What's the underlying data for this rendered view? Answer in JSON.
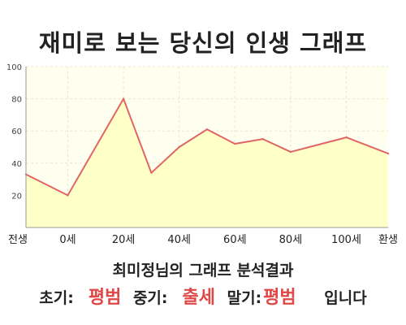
{
  "header": {
    "title": "재미로 보는 당신의 인생 그래프"
  },
  "chart_data": {
    "type": "area",
    "title": "재미로 보는 당신의 인생 그래프",
    "xlabel": "",
    "ylabel": "",
    "ylim": [
      0,
      100
    ],
    "yticks": [
      20,
      40,
      60,
      80,
      100
    ],
    "xticks": [
      {
        "label": "전생",
        "x": -15
      },
      {
        "label": "0세",
        "x": 0
      },
      {
        "label": "20세",
        "x": 20
      },
      {
        "label": "40세",
        "x": 40
      },
      {
        "label": "60세",
        "x": 60
      },
      {
        "label": "80세",
        "x": 80
      },
      {
        "label": "100세",
        "x": 100
      },
      {
        "label": "환생",
        "x": 115
      }
    ],
    "xlim": [
      -15,
      115
    ],
    "series": [
      {
        "x": [
          -15,
          0,
          20,
          30,
          40,
          50,
          60,
          70,
          80,
          100,
          115
        ],
        "values": [
          33,
          20,
          80,
          34,
          50,
          61,
          52,
          55,
          47,
          56,
          46
        ]
      }
    ],
    "grid": true,
    "colors": {
      "line": "#e06666",
      "fill": "#ffffc8",
      "plot_bg": "#fffff0",
      "grid": "#e8e8c8"
    }
  },
  "result": {
    "subtitle": "최미정님의 그래프 분석결과",
    "early_label": "초기:",
    "early_value": "평범",
    "mid_label": "중기:",
    "mid_value": "출세",
    "late_label": "말기:",
    "late_value": "평범",
    "suffix": "입니다"
  }
}
